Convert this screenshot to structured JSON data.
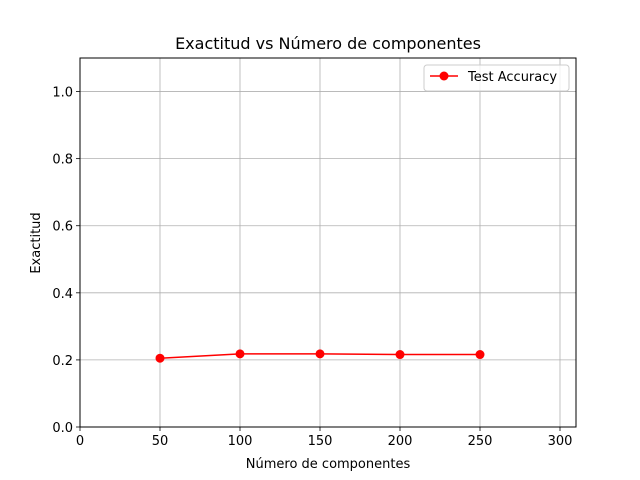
{
  "chart_data": {
    "type": "line",
    "title": "Exactitud vs Número de componentes",
    "xlabel": "Número de componentes",
    "ylabel": "Exactitud",
    "xlim": [
      0,
      310
    ],
    "ylim": [
      0,
      1.1
    ],
    "xticks": [
      0,
      50,
      100,
      150,
      200,
      250,
      300
    ],
    "yticks": [
      0.0,
      0.2,
      0.4,
      0.6,
      0.8,
      1.0
    ],
    "grid": true,
    "legend_position": "top-right",
    "series": [
      {
        "name": "Test Accuracy",
        "color": "#ff0000",
        "marker": "circle",
        "x": [
          50,
          100,
          150,
          200,
          250
        ],
        "y": [
          0.205,
          0.218,
          0.218,
          0.216,
          0.216
        ]
      }
    ]
  }
}
